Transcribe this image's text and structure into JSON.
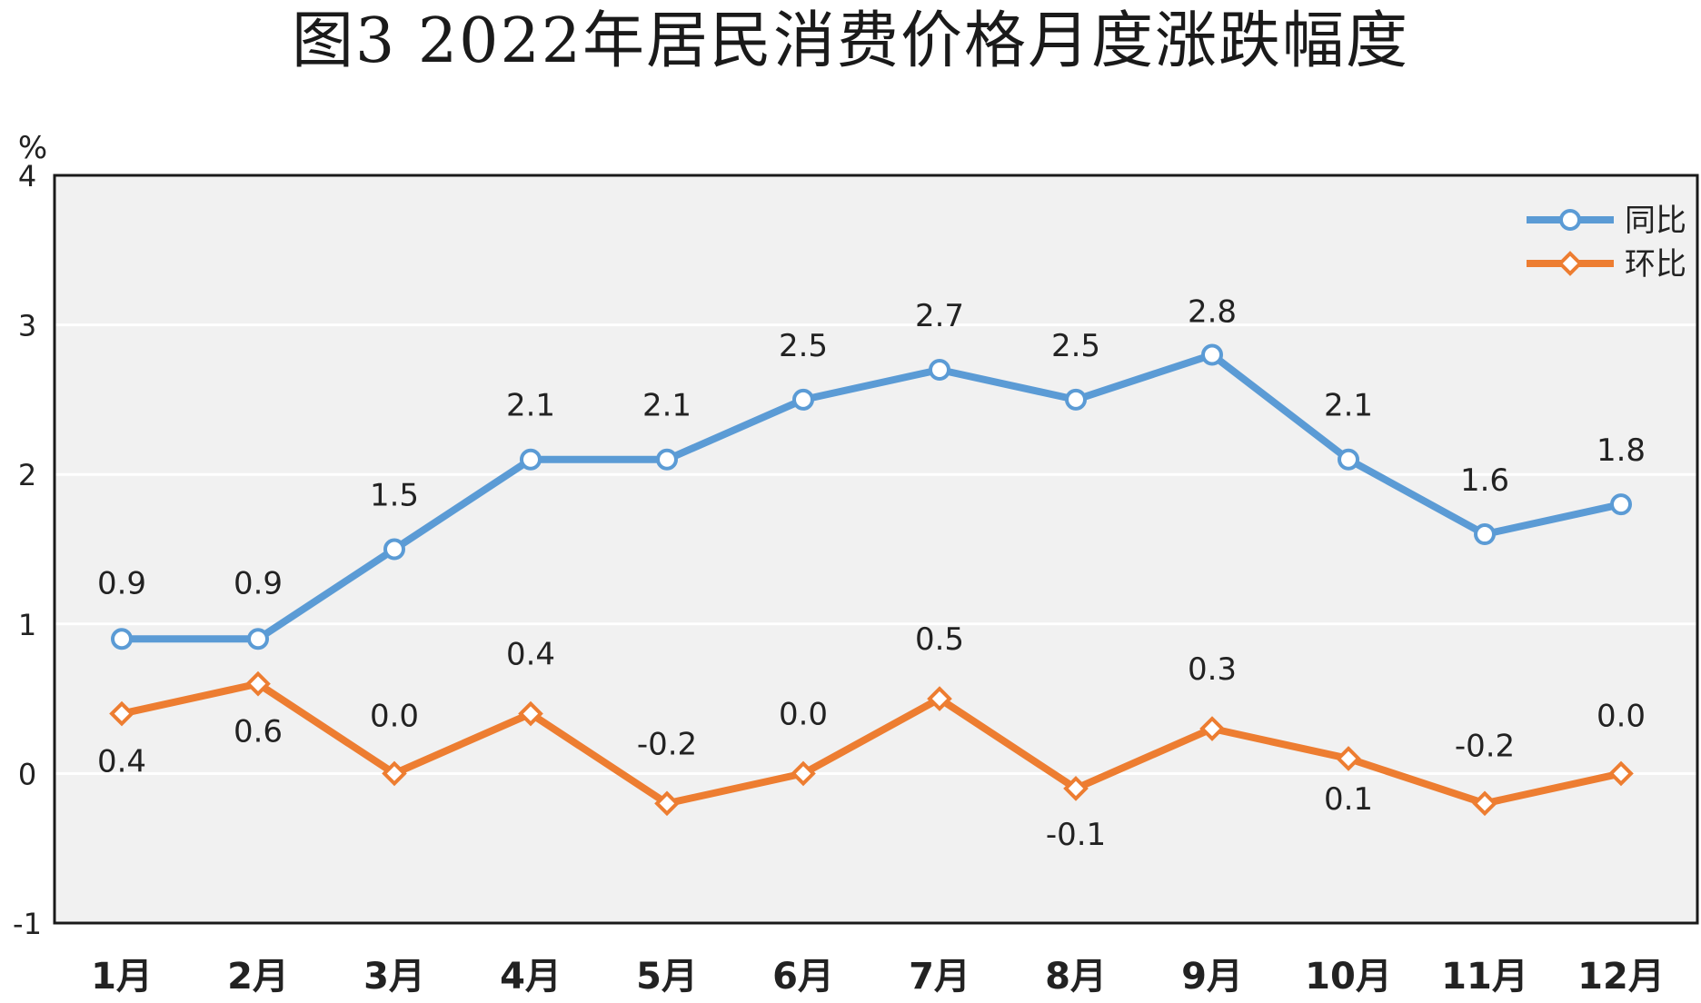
{
  "title": "图3  2022年居民消费价格月度涨跌幅度",
  "chart_data": {
    "type": "line",
    "title": "图3  2022年居民消费价格月度涨跌幅度",
    "ylabel": "%",
    "ylim": [
      -1,
      4
    ],
    "yticks": [
      "4",
      "3",
      "2",
      "1",
      "0",
      "-1"
    ],
    "categories": [
      "1月",
      "2月",
      "3月",
      "4月",
      "5月",
      "6月",
      "7月",
      "8月",
      "9月",
      "10月",
      "11月",
      "12月"
    ],
    "grid": true,
    "legend_position": "top-right",
    "series": [
      {
        "name": "同比",
        "color": "#5B9BD5",
        "marker": "circle",
        "values": [
          0.9,
          0.9,
          1.5,
          2.1,
          2.1,
          2.5,
          2.7,
          2.5,
          2.8,
          2.1,
          1.6,
          1.8
        ],
        "labels": [
          "0.9",
          "0.9",
          "1.5",
          "2.1",
          "2.1",
          "2.5",
          "2.7",
          "2.5",
          "2.8",
          "2.1",
          "1.6",
          "1.8"
        ]
      },
      {
        "name": "环比",
        "color": "#ED7D31",
        "marker": "diamond",
        "values": [
          0.4,
          0.6,
          0.0,
          0.4,
          -0.2,
          0.0,
          0.5,
          -0.1,
          0.3,
          0.1,
          -0.2,
          0.0
        ],
        "labels": [
          "0.4",
          "0.6",
          "0.0",
          "0.4",
          "-0.2",
          "0.0",
          "0.5",
          "-0.1",
          "0.3",
          "0.1",
          "-0.2",
          "0.0"
        ]
      }
    ]
  }
}
